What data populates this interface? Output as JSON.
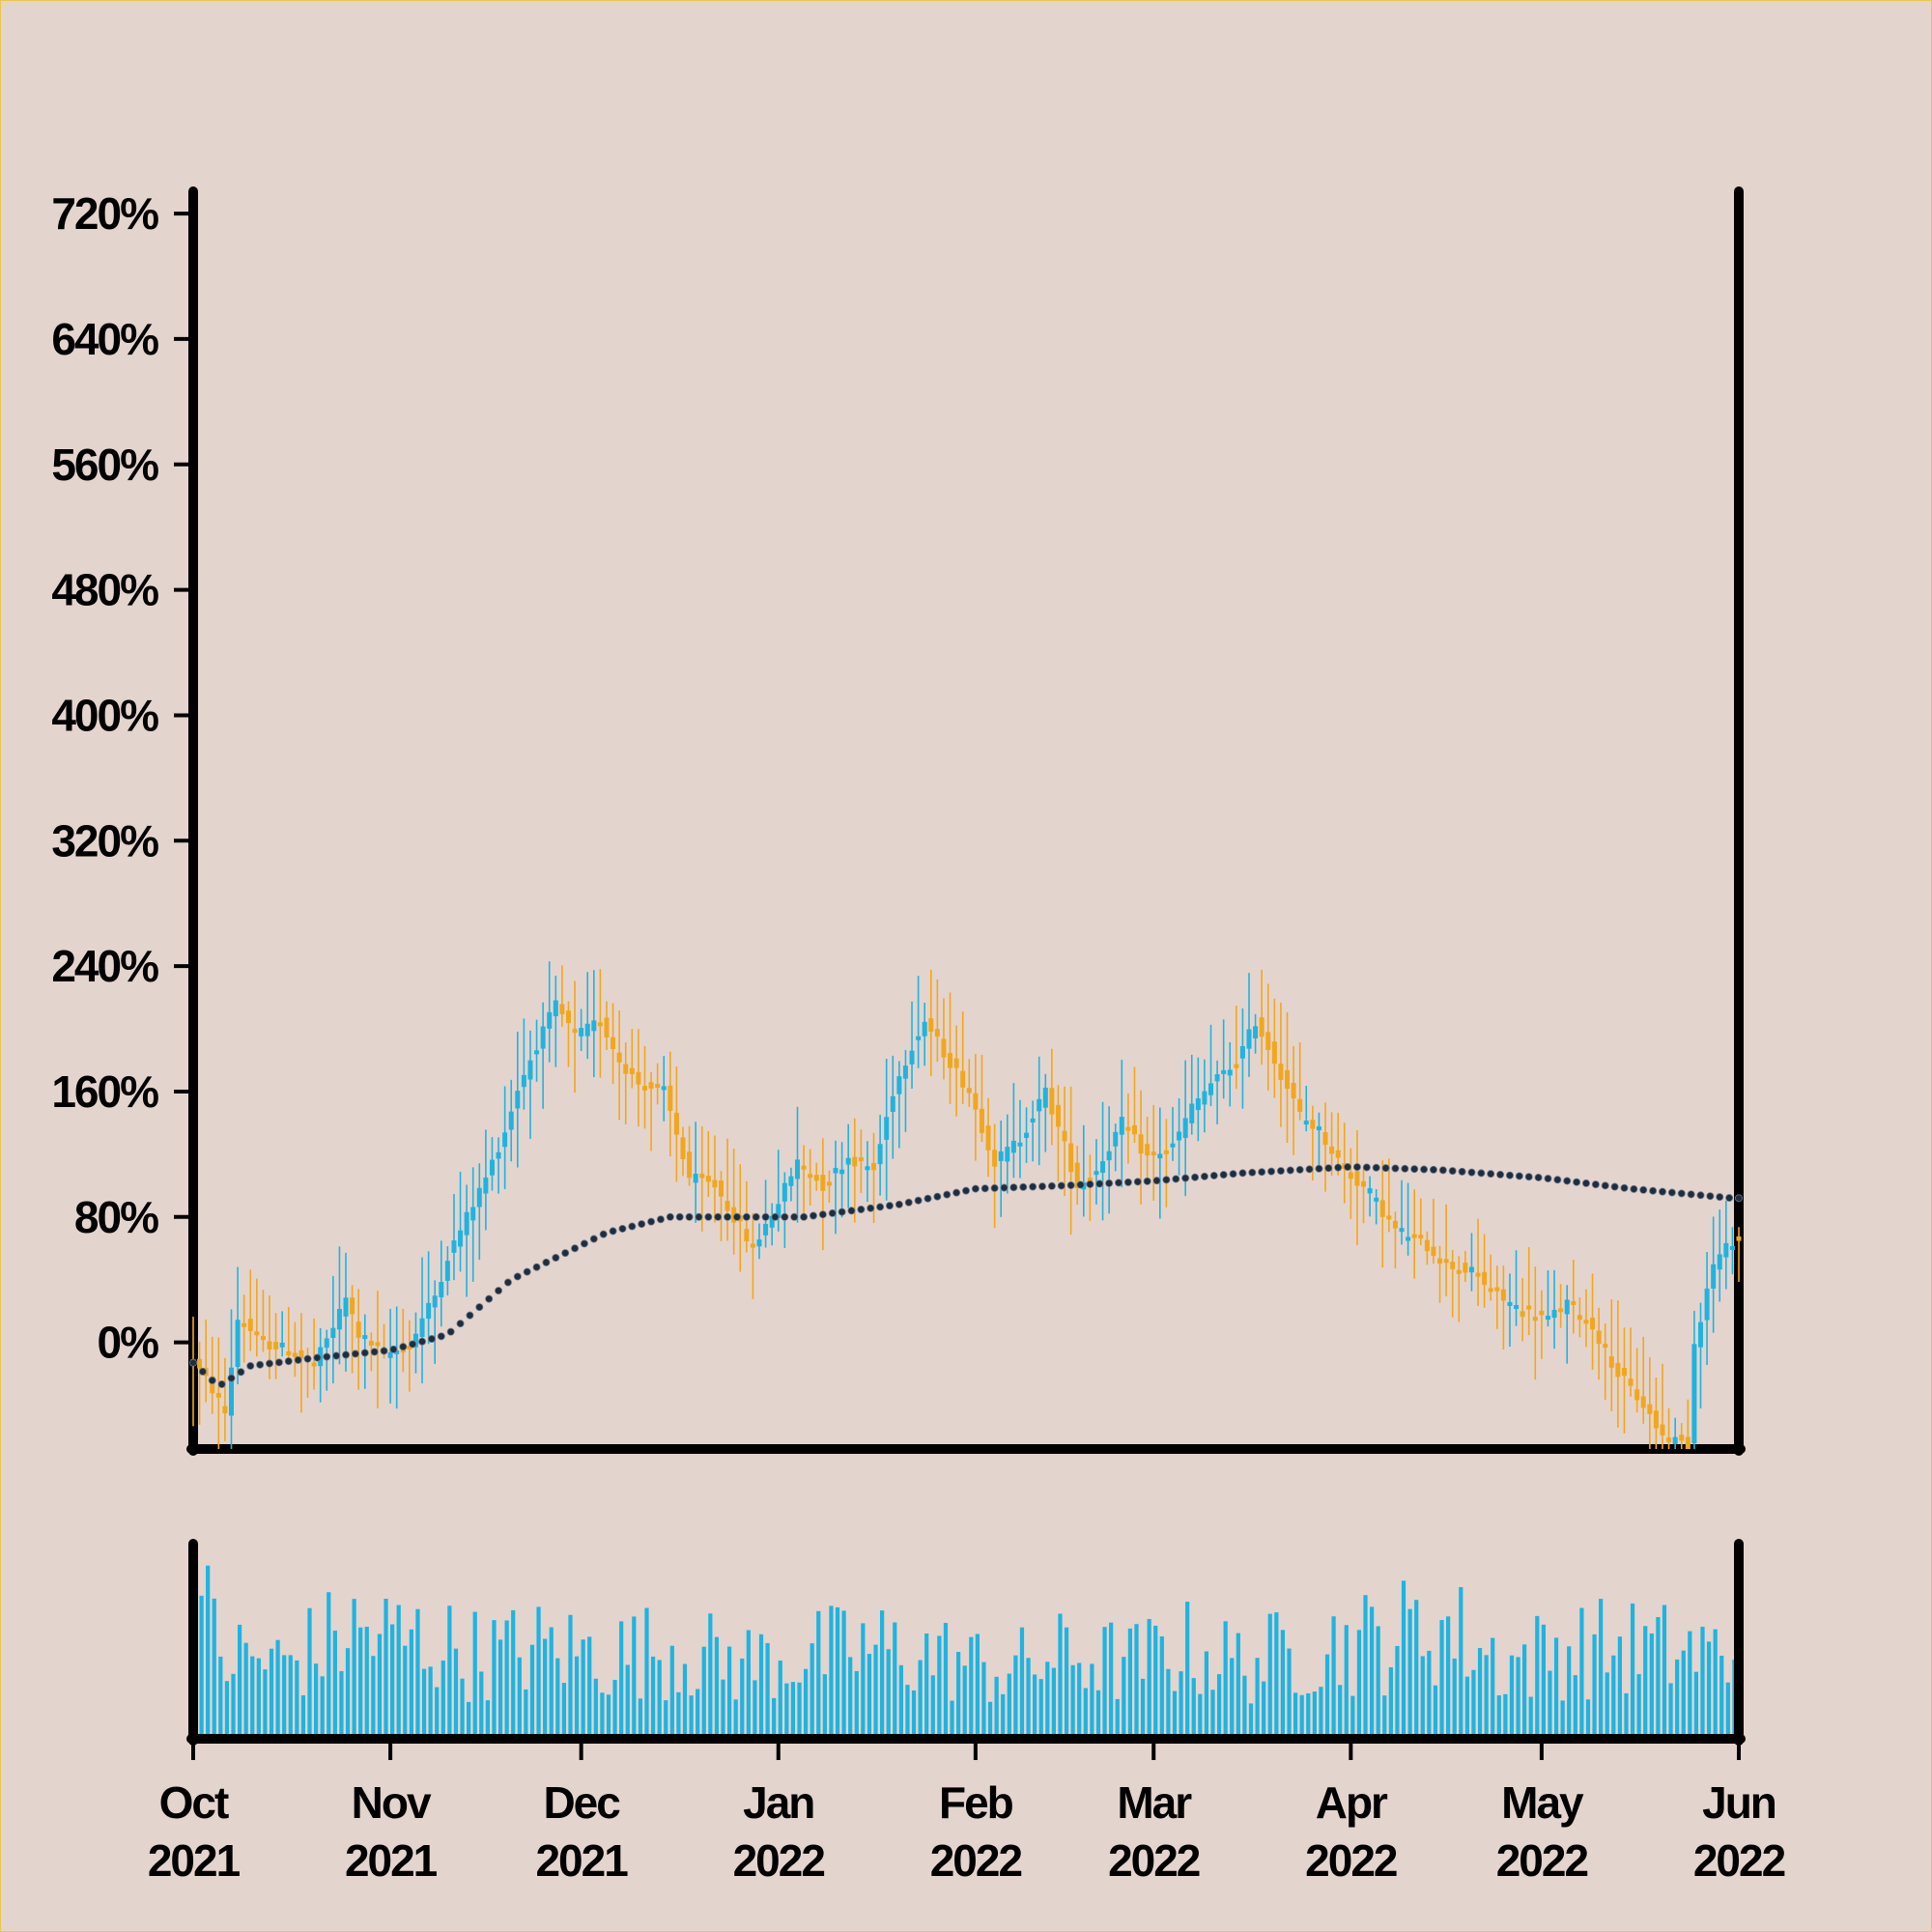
{
  "colors": {
    "background": "#e4d4ce",
    "up": "#1eb4e0",
    "down": "#f2a71b",
    "volume": "#1eb4e0",
    "moving_average": "#1f2d3d",
    "axis": "#000000",
    "border": "#e8c84a"
  },
  "chart_data": {
    "type": "candlestick",
    "title": "",
    "xlabel": "",
    "ylabel": "",
    "y_ticks": [
      "0%",
      "80%",
      "160%",
      "240%",
      "320%",
      "400%",
      "480%",
      "560%",
      "640%",
      "720%"
    ],
    "y_tick_values": [
      0,
      80,
      160,
      240,
      320,
      400,
      480,
      560,
      640,
      720
    ],
    "ylim": [
      -68,
      733
    ],
    "xlim": [
      "2021-10-01",
      "2022-06-01"
    ],
    "x_ticks": [
      {
        "date": "2021-10-01",
        "month": "Oct",
        "year": "2021"
      },
      {
        "date": "2021-11-01",
        "month": "Nov",
        "year": "2021"
      },
      {
        "date": "2021-12-01",
        "month": "Dec",
        "year": "2021"
      },
      {
        "date": "2022-01-01",
        "month": "Jan",
        "year": "2022"
      },
      {
        "date": "2022-02-01",
        "month": "Feb",
        "year": "2022"
      },
      {
        "date": "2022-03-01",
        "month": "Mar",
        "year": "2022"
      },
      {
        "date": "2022-04-01",
        "month": "Apr",
        "year": "2022"
      },
      {
        "date": "2022-05-01",
        "month": "May",
        "year": "2022"
      },
      {
        "date": "2022-06-01",
        "month": "Jun",
        "year": "2022"
      }
    ],
    "grid": false,
    "legend": "none",
    "close_path": [
      [
        "2021-10-01",
        -12
      ],
      [
        "2021-10-04",
        -30
      ],
      [
        "2021-10-06",
        -45
      ],
      [
        "2021-10-08",
        15
      ],
      [
        "2021-10-12",
        0
      ],
      [
        "2021-10-16",
        -5
      ],
      [
        "2021-10-20",
        -15
      ],
      [
        "2021-10-23",
        10
      ],
      [
        "2021-10-25",
        28
      ],
      [
        "2021-10-27",
        5
      ],
      [
        "2021-10-31",
        -8
      ],
      [
        "2021-11-04",
        -2
      ],
      [
        "2021-11-06",
        15
      ],
      [
        "2021-11-08",
        30
      ],
      [
        "2021-11-10",
        55
      ],
      [
        "2021-11-13",
        80
      ],
      [
        "2021-11-16",
        105
      ],
      [
        "2021-11-19",
        135
      ],
      [
        "2021-11-21",
        162
      ],
      [
        "2021-11-24",
        190
      ],
      [
        "2021-11-27",
        215
      ],
      [
        "2021-11-30",
        195
      ],
      [
        "2021-12-04",
        205
      ],
      [
        "2021-12-07",
        180
      ],
      [
        "2021-12-10",
        165
      ],
      [
        "2021-12-14",
        160
      ],
      [
        "2021-12-18",
        105
      ],
      [
        "2021-12-22",
        100
      ],
      [
        "2021-12-25",
        80
      ],
      [
        "2021-12-28",
        60
      ],
      [
        "2022-01-01",
        90
      ],
      [
        "2022-01-04",
        115
      ],
      [
        "2022-01-08",
        100
      ],
      [
        "2022-01-12",
        118
      ],
      [
        "2022-01-16",
        110
      ],
      [
        "2022-01-19",
        160
      ],
      [
        "2022-01-22",
        190
      ],
      [
        "2022-01-24",
        205
      ],
      [
        "2022-01-27",
        185
      ],
      [
        "2022-01-31",
        160
      ],
      [
        "2022-02-04",
        115
      ],
      [
        "2022-02-08",
        130
      ],
      [
        "2022-02-12",
        160
      ],
      [
        "2022-02-15",
        125
      ],
      [
        "2022-02-17",
        100
      ],
      [
        "2022-02-20",
        110
      ],
      [
        "2022-02-24",
        140
      ],
      [
        "2022-02-28",
        118
      ],
      [
        "2022-03-04",
        125
      ],
      [
        "2022-03-07",
        150
      ],
      [
        "2022-03-10",
        165
      ],
      [
        "2022-03-14",
        178
      ],
      [
        "2022-03-17",
        205
      ],
      [
        "2022-03-20",
        180
      ],
      [
        "2022-03-24",
        145
      ],
      [
        "2022-03-27",
        135
      ],
      [
        "2022-03-31",
        110
      ],
      [
        "2022-04-04",
        95
      ],
      [
        "2022-04-08",
        72
      ],
      [
        "2022-04-12",
        65
      ],
      [
        "2022-04-16",
        50
      ],
      [
        "2022-04-20",
        45
      ],
      [
        "2022-04-24",
        30
      ],
      [
        "2022-04-28",
        20
      ],
      [
        "2022-05-02",
        15
      ],
      [
        "2022-05-05",
        25
      ],
      [
        "2022-05-09",
        10
      ],
      [
        "2022-05-13",
        -20
      ],
      [
        "2022-05-17",
        -40
      ],
      [
        "2022-05-20",
        -60
      ],
      [
        "2022-05-24",
        -65
      ],
      [
        "2022-05-25",
        0
      ],
      [
        "2022-05-28",
        50
      ],
      [
        "2022-05-31",
        65
      ]
    ],
    "moving_average": [
      [
        "2021-10-01",
        -13
      ],
      [
        "2021-10-05",
        -28
      ],
      [
        "2021-10-10",
        -15
      ],
      [
        "2021-10-20",
        -10
      ],
      [
        "2021-11-01",
        -5
      ],
      [
        "2021-11-10",
        5
      ],
      [
        "2021-11-20",
        40
      ],
      [
        "2021-11-25",
        50
      ],
      [
        "2021-12-05",
        70
      ],
      [
        "2021-12-15",
        80
      ],
      [
        "2021-12-25",
        80
      ],
      [
        "2022-01-05",
        80
      ],
      [
        "2022-01-20",
        88
      ],
      [
        "2022-02-01",
        98
      ],
      [
        "2022-02-15",
        100
      ],
      [
        "2022-03-01",
        103
      ],
      [
        "2022-03-15",
        108
      ],
      [
        "2022-04-01",
        112
      ],
      [
        "2022-04-15",
        110
      ],
      [
        "2022-05-01",
        105
      ],
      [
        "2022-05-15",
        98
      ],
      [
        "2022-05-31",
        92
      ]
    ],
    "volume_relative": [
      [
        "2021-10-01",
        1.0
      ],
      [
        "2021-10-05",
        0.55
      ],
      [
        "2021-10-15",
        0.5
      ],
      [
        "2021-10-25",
        0.7
      ],
      [
        "2021-11-05",
        0.65
      ],
      [
        "2021-11-15",
        0.55
      ],
      [
        "2021-11-25",
        0.6
      ],
      [
        "2021-12-05",
        0.55
      ],
      [
        "2021-12-15",
        0.6
      ],
      [
        "2021-12-25",
        0.5
      ],
      [
        "2022-01-05",
        0.55
      ],
      [
        "2022-01-15",
        0.6
      ],
      [
        "2022-01-25",
        0.55
      ],
      [
        "2022-02-05",
        0.45
      ],
      [
        "2022-02-15",
        0.55
      ],
      [
        "2022-02-25",
        0.5
      ],
      [
        "2022-03-05",
        0.6
      ],
      [
        "2022-03-15",
        0.5
      ],
      [
        "2022-03-25",
        0.6
      ],
      [
        "2022-04-05",
        0.65
      ],
      [
        "2022-04-15",
        0.75
      ],
      [
        "2022-04-25",
        0.5
      ],
      [
        "2022-05-05",
        0.6
      ],
      [
        "2022-05-15",
        0.6
      ],
      [
        "2022-05-31",
        0.55
      ]
    ]
  }
}
